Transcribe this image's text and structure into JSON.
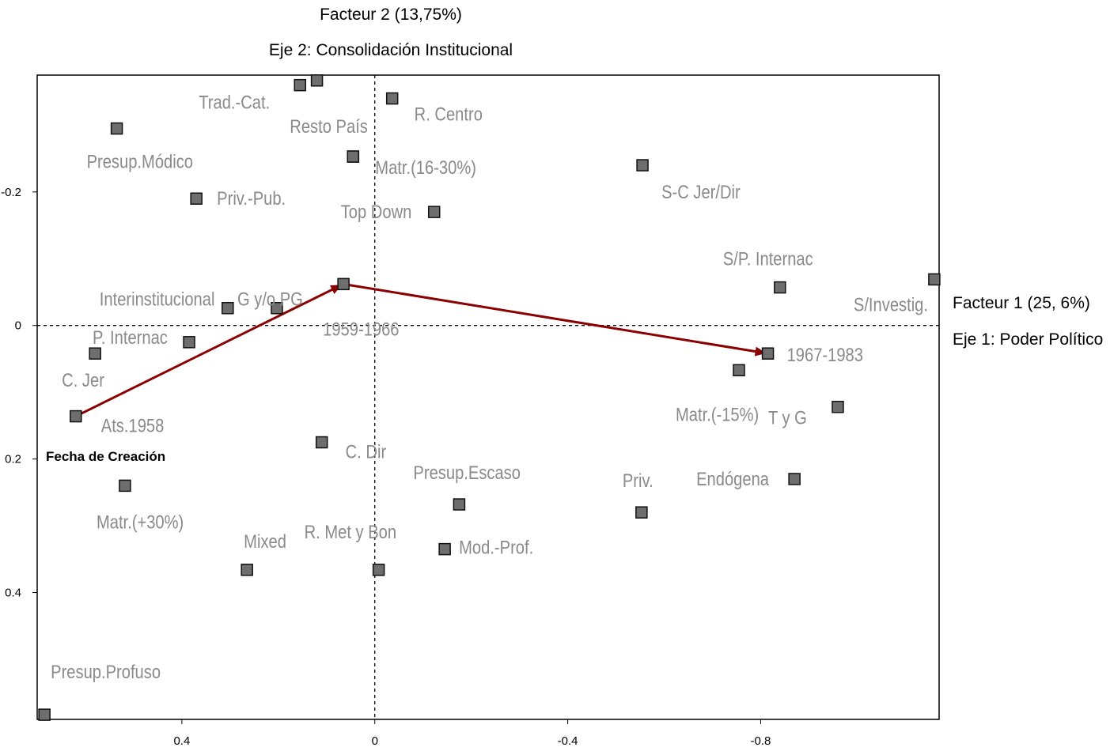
{
  "chart_data": {
    "type": "scatter",
    "titles": {
      "y_factor": "Facteur 2 (13,75%)",
      "y_axis": "Eje 2: Consolidación Institucional",
      "x_factor": "Facteur 1 (25, 6%)",
      "x_axis": "Eje 1: Poder Político"
    },
    "annotation": "Fecha de Creación",
    "x_ticks": [
      {
        "value": 0.4,
        "label": "0.4"
      },
      {
        "value": 0,
        "label": "0"
      },
      {
        "value": -0.4,
        "label": "-0.4"
      },
      {
        "value": -0.8,
        "label": "-0.8"
      }
    ],
    "y_ticks": [
      {
        "value": -0.2,
        "label": "-0.2"
      },
      {
        "value": 0,
        "label": "0"
      },
      {
        "value": 0.2,
        "label": "0.2"
      },
      {
        "value": 0.4,
        "label": "0.4"
      }
    ],
    "xlim": [
      0.7,
      -1.17
    ],
    "ylim": [
      -0.375,
      0.59
    ],
    "axis_lines": "dashed through origin",
    "grid": false,
    "points": [
      {
        "label": "Trad.-Cat.",
        "x": 0.155,
        "y": -0.36
      },
      {
        "label": "",
        "x": 0.12,
        "y": -0.367
      },
      {
        "label": "R. Centro",
        "x": -0.036,
        "y": -0.34
      },
      {
        "label": "Resto País",
        "x": 0.045,
        "y": -0.253
      },
      {
        "label": "Presup.Módico",
        "x": 0.535,
        "y": -0.295
      },
      {
        "label": "Matr.(16-30%)",
        "x": 0.045,
        "y": -0.253
      },
      {
        "label": "S-C Jer/Dir",
        "x": -0.555,
        "y": -0.24
      },
      {
        "label": "Priv.-Pub.",
        "x": 0.37,
        "y": -0.19
      },
      {
        "label": "Top Down",
        "x": -0.123,
        "y": -0.17
      },
      {
        "label": "S/P. Internac",
        "x": -0.84,
        "y": -0.057
      },
      {
        "label": "S/Investig.",
        "x": -1.16,
        "y": -0.069
      },
      {
        "label": "Interinstitucional",
        "x": 0.305,
        "y": -0.026
      },
      {
        "label": "G y/o PG",
        "x": 0.203,
        "y": -0.026
      },
      {
        "label": "1959-1966",
        "x": 0.065,
        "y": -0.062
      },
      {
        "label": "P. Internac",
        "x": 0.385,
        "y": 0.025
      },
      {
        "label": "C. Jer",
        "x": 0.58,
        "y": 0.042
      },
      {
        "label": "1967-1983",
        "x": -0.815,
        "y": 0.042
      },
      {
        "label": "Matr.(-15%)",
        "x": -0.755,
        "y": 0.067
      },
      {
        "label": "T y G",
        "x": -0.96,
        "y": 0.122
      },
      {
        "label": "Ats.1958",
        "x": 0.62,
        "y": 0.136
      },
      {
        "label": "C. Dir",
        "x": 0.11,
        "y": 0.175
      },
      {
        "label": "Matr.(+30%)",
        "x": 0.518,
        "y": 0.24
      },
      {
        "label": "Endógena",
        "x": -0.87,
        "y": 0.23
      },
      {
        "label": "Presup.Escaso",
        "x": -0.175,
        "y": 0.268
      },
      {
        "label": "Priv.",
        "x": -0.553,
        "y": 0.28
      },
      {
        "label": "Mod.-Prof.",
        "x": -0.145,
        "y": 0.335
      },
      {
        "label": "Mixed",
        "x": 0.265,
        "y": 0.366
      },
      {
        "label": "R. Met y Bon",
        "x": -0.008,
        "y": 0.366
      },
      {
        "label": "Presup.Profuso",
        "x": 0.685,
        "y": 0.583
      }
    ],
    "trajectory": {
      "color": "#8b0000",
      "path": [
        {
          "label": "Ats.1958",
          "x": 0.62,
          "y": 0.136
        },
        {
          "label": "1959-1966",
          "x": 0.065,
          "y": -0.062
        },
        {
          "label": "1967-1983",
          "x": -0.815,
          "y": 0.042
        }
      ]
    },
    "colors": {
      "marker_fill": "#6e6e6e",
      "marker_stroke": "#111111",
      "label": "#8a8a8a",
      "arrow": "#8b0000"
    }
  }
}
